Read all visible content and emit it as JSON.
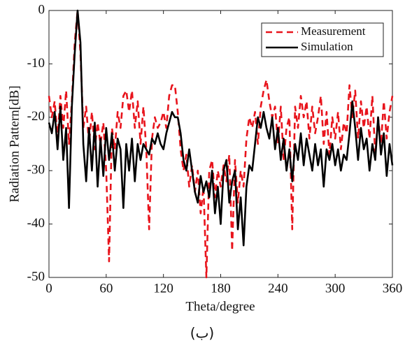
{
  "chart_data": {
    "type": "line",
    "xlabel": "Theta/degree",
    "ylabel": "Radiation Pattern[dB]",
    "caption": "(ب)",
    "x": [
      0,
      3,
      6,
      9,
      12,
      15,
      18,
      21,
      24,
      27,
      30,
      33,
      36,
      39,
      42,
      45,
      48,
      51,
      54,
      57,
      60,
      63,
      66,
      69,
      72,
      75,
      78,
      81,
      84,
      87,
      90,
      93,
      96,
      99,
      102,
      105,
      108,
      111,
      114,
      117,
      120,
      123,
      126,
      129,
      132,
      135,
      138,
      141,
      144,
      147,
      150,
      153,
      156,
      159,
      162,
      165,
      168,
      171,
      174,
      177,
      180,
      183,
      186,
      189,
      192,
      195,
      198,
      201,
      204,
      207,
      210,
      213,
      216,
      219,
      222,
      225,
      228,
      231,
      234,
      237,
      240,
      243,
      246,
      249,
      252,
      255,
      258,
      261,
      264,
      267,
      270,
      273,
      276,
      279,
      282,
      285,
      288,
      291,
      294,
      297,
      300,
      303,
      306,
      309,
      312,
      315,
      318,
      321,
      324,
      327,
      330,
      333,
      336,
      339,
      342,
      345,
      348,
      351,
      354,
      357,
      360
    ],
    "series": [
      {
        "name": "Measurement",
        "color": "#e8141c",
        "dash": true,
        "values": [
          -16,
          -20,
          -17,
          -24,
          -16,
          -22,
          -15,
          -25,
          -17,
          -6,
          0,
          -8,
          -22,
          -18,
          -25,
          -19,
          -26,
          -21,
          -25,
          -21,
          -30,
          -47,
          -22,
          -26,
          -19,
          -22,
          -16,
          -15,
          -19,
          -15,
          -22,
          -17,
          -25,
          -18,
          -26,
          -41,
          -24,
          -20,
          -22,
          -21,
          -19,
          -22,
          -16,
          -14,
          -14,
          -19,
          -26,
          -30,
          -27,
          -33,
          -29,
          -34,
          -30,
          -38,
          -33,
          -50,
          -30,
          -28,
          -35,
          -30,
          -33,
          -29,
          -32,
          -27,
          -45,
          -28,
          -36,
          -30,
          -33,
          -24,
          -20,
          -22,
          -19,
          -25,
          -18,
          -15,
          -13,
          -17,
          -20,
          -18,
          -25,
          -18,
          -28,
          -22,
          -20,
          -41,
          -18,
          -22,
          -16,
          -20,
          -17,
          -24,
          -18,
          -23,
          -20,
          -16,
          -25,
          -19,
          -27,
          -20,
          -24,
          -19,
          -26,
          -21,
          -23,
          -14,
          -20,
          -15,
          -24,
          -17,
          -22,
          -18,
          -24,
          -16,
          -27,
          -20,
          -25,
          -17,
          -24,
          -19,
          -16
        ]
      },
      {
        "name": "Simulation",
        "color": "#000000",
        "dash": false,
        "values": [
          -21,
          -23,
          -19,
          -26,
          -18,
          -28,
          -22,
          -37,
          -18,
          -8,
          0,
          -6,
          -25,
          -32,
          -22,
          -30,
          -21,
          -33,
          -24,
          -31,
          -22,
          -28,
          -23,
          -30,
          -24,
          -26,
          -37,
          -25,
          -30,
          -24,
          -32,
          -25,
          -28,
          -25,
          -26,
          -27,
          -24,
          -25,
          -23,
          -25,
          -26,
          -23,
          -21,
          -19,
          -20,
          -20,
          -23,
          -28,
          -30,
          -26,
          -30,
          -34,
          -36,
          -31,
          -34,
          -32,
          -35,
          -30,
          -38,
          -33,
          -40,
          -30,
          -28,
          -36,
          -32,
          -30,
          -41,
          -35,
          -44,
          -33,
          -29,
          -30,
          -25,
          -20,
          -22,
          -19,
          -22,
          -24,
          -20,
          -26,
          -22,
          -28,
          -24,
          -30,
          -26,
          -32,
          -25,
          -28,
          -23,
          -29,
          -24,
          -27,
          -30,
          -25,
          -29,
          -26,
          -33,
          -26,
          -28,
          -25,
          -29,
          -26,
          -30,
          -27,
          -28,
          -23,
          -17,
          -22,
          -28,
          -22,
          -26,
          -24,
          -30,
          -25,
          -28,
          -20,
          -27,
          -23,
          -31,
          -25,
          -29
        ]
      }
    ],
    "xlim": [
      0,
      360
    ],
    "xticks": [
      0,
      60,
      120,
      180,
      240,
      300,
      360
    ],
    "ylim": [
      -50,
      0
    ],
    "yticks": [
      -50,
      -40,
      -30,
      -20,
      -10,
      0
    ],
    "legend": "upper right",
    "grid": false
  }
}
